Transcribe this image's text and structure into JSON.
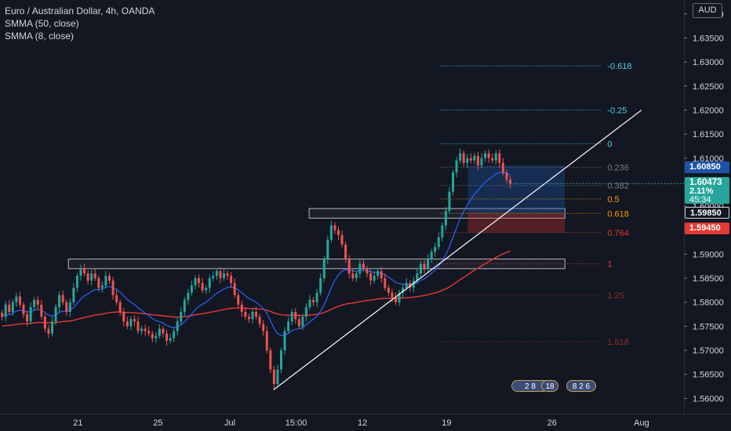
{
  "legend": {
    "symbol": "Euro / Australian Dollar, 4h, OANDA",
    "ind1": "SMMA (50, close)",
    "ind2": "SMMA (8, close)"
  },
  "currency": "AUD",
  "price_tags": {
    "top": "1.60850",
    "current": "1.60473",
    "change": "2.11%",
    "timer": "45:34",
    "mid": "1.59850",
    "low": "1.59450"
  },
  "events": [
    "2 8",
    "18",
    "8 2 6"
  ],
  "colors": {
    "background": "#131722",
    "up": "#26a69a",
    "down": "#ef5350",
    "smma50": "#e53935",
    "smma8": "#2962ff",
    "trendline": "#ffffff",
    "fib_upper": "#4dd0e1",
    "fib_mid": "#ff9800",
    "fib_lower": "#e53935",
    "target_zone": "#1e3a6b",
    "stop_zone": "#5c1f24"
  },
  "chart_data": {
    "type": "candlestick",
    "interval": "4h",
    "ylim": [
      1.5568,
      1.6429
    ],
    "y_ticks": [
      "1.64000",
      "1.63500",
      "1.63000",
      "1.62500",
      "1.62000",
      "1.61500",
      "1.61000",
      "1.60500",
      "1.60000",
      "1.59500",
      "1.59000",
      "1.58500",
      "1.58000",
      "1.57500",
      "1.57000",
      "1.56500",
      "1.56000"
    ],
    "x_ticks": [
      "21",
      "25",
      "Jul",
      "15:00",
      "12",
      "19",
      "26",
      "Aug"
    ],
    "fib_levels": [
      {
        "label": "-0.618",
        "price": 1.6292,
        "group": "upper"
      },
      {
        "label": "-0.25",
        "price": 1.62,
        "group": "upper"
      },
      {
        "label": "0",
        "price": 1.613,
        "group": "upper"
      },
      {
        "label": "0.236",
        "price": 1.6081,
        "group": "neutral"
      },
      {
        "label": "0.382",
        "price": 1.6043,
        "group": "neutral"
      },
      {
        "label": "0.5",
        "price": 1.6015,
        "group": "mid"
      },
      {
        "label": "0.618",
        "price": 1.5985,
        "group": "mid"
      },
      {
        "label": "0.764",
        "price": 1.5945,
        "group": "lower"
      },
      {
        "label": "1",
        "price": 1.588,
        "group": "lower"
      },
      {
        "label": "1.25",
        "price": 1.5815,
        "group": "lower"
      },
      {
        "label": "1.618",
        "price": 1.5718,
        "group": "lower"
      }
    ],
    "zones": [
      {
        "name": "resistance-box-left",
        "x0": 0.1,
        "x1": 0.826,
        "p_top": 1.589,
        "p_bot": 1.587
      },
      {
        "name": "resistance-box-right",
        "x0": 0.452,
        "x1": 0.826,
        "p_top": 1.5995,
        "p_bot": 1.5975
      },
      {
        "name": "target",
        "x0": 0.684,
        "x1": 0.826,
        "p_top": 1.6085,
        "p_bot": 1.5985
      },
      {
        "name": "stop",
        "x0": 0.684,
        "x1": 0.826,
        "p_top": 1.5985,
        "p_bot": 1.5945
      }
    ],
    "trendline": [
      {
        "x": 0.4,
        "p": 1.5618
      },
      {
        "x": 0.938,
        "p": 1.62
      }
    ],
    "closes": [
      1.577,
      1.5795,
      1.578,
      1.58,
      1.5812,
      1.5795,
      1.5775,
      1.576,
      1.579,
      1.5805,
      1.5795,
      1.577,
      1.5745,
      1.5735,
      1.576,
      1.579,
      1.5815,
      1.58,
      1.578,
      1.58,
      1.583,
      1.5855,
      1.587,
      1.586,
      1.5845,
      1.586,
      1.585,
      1.583,
      1.5835,
      1.5855,
      1.5845,
      1.5815,
      1.58,
      1.578,
      1.576,
      1.575,
      1.5765,
      1.576,
      1.574,
      1.5745,
      1.574,
      1.5735,
      1.5725,
      1.573,
      1.5745,
      1.5735,
      1.572,
      1.5725,
      1.574,
      1.576,
      1.578,
      1.5805,
      1.582,
      1.5835,
      1.585,
      1.584,
      1.5825,
      1.583,
      1.585,
      1.5855,
      1.5865,
      1.585,
      1.586,
      1.5855,
      1.584,
      1.5815,
      1.5795,
      1.578,
      1.577,
      1.5765,
      1.578,
      1.577,
      1.5755,
      1.574,
      1.57,
      1.566,
      1.563,
      1.566,
      1.57,
      1.574,
      1.576,
      1.578,
      1.5765,
      1.575,
      1.577,
      1.579,
      1.5805,
      1.58,
      1.582,
      1.585,
      1.589,
      1.593,
      1.596,
      1.595,
      1.594,
      1.592,
      1.589,
      1.586,
      1.585,
      1.586,
      1.588,
      1.587,
      1.586,
      1.5845,
      1.5855,
      1.5865,
      1.585,
      1.583,
      1.582,
      1.581,
      1.58,
      1.582,
      1.583,
      1.584,
      1.583,
      1.5845,
      1.586,
      1.588,
      1.587,
      1.589,
      1.5905,
      1.5915,
      1.5935,
      1.596,
      1.599,
      1.603,
      1.607,
      1.6095,
      1.611,
      1.609,
      1.61,
      1.6095,
      1.6105,
      1.6085,
      1.61,
      1.611,
      1.61,
      1.6095,
      1.611,
      1.609,
      1.607,
      1.6055,
      1.6047
    ]
  }
}
